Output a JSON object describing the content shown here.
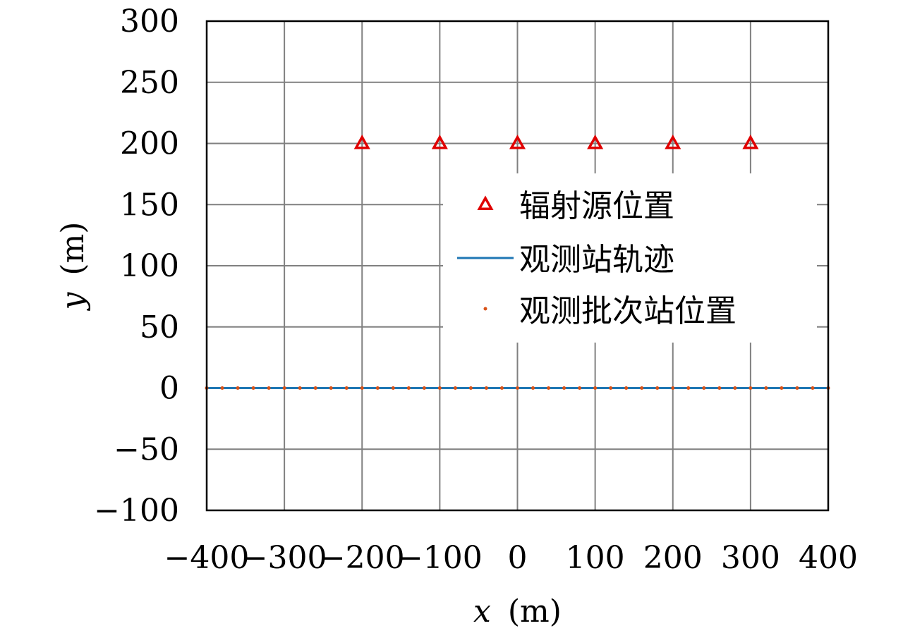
{
  "chart_data": {
    "type": "scatter",
    "xlabel_var": "x",
    "xlabel_unit": "(m)",
    "ylabel_var": "y",
    "ylabel_unit": "(m)",
    "xlim": [
      -400,
      400
    ],
    "ylim": [
      -100,
      300
    ],
    "xticks": [
      -400,
      -300,
      -200,
      -100,
      0,
      100,
      200,
      300,
      400
    ],
    "yticks": [
      -100,
      -50,
      0,
      50,
      100,
      150,
      200,
      250,
      300
    ],
    "xtick_labels": [
      "−400",
      "−300",
      "−200",
      "−100",
      "0",
      "100",
      "200",
      "300",
      "400"
    ],
    "ytick_labels": [
      "−100",
      "−50",
      "0",
      "50",
      "100",
      "150",
      "200",
      "250",
      "300"
    ],
    "grid": true,
    "legend_position": "right-middle",
    "series": [
      {
        "name": "辐射源位置",
        "kind": "marker-triangle",
        "color": "#e00000",
        "points": [
          [
            -200,
            200
          ],
          [
            -100,
            200
          ],
          [
            0,
            200
          ],
          [
            100,
            200
          ],
          [
            200,
            200
          ],
          [
            300,
            200
          ]
        ]
      },
      {
        "name": "观测站轨迹",
        "kind": "line",
        "color": "#1f77b4",
        "points": [
          [
            -400,
            0
          ],
          [
            400,
            0
          ]
        ]
      },
      {
        "name": "观测批次站位置",
        "kind": "marker-dot",
        "color": "#d95319",
        "x_start": -400,
        "x_end": 400,
        "x_step": 20,
        "y": 0
      }
    ]
  }
}
